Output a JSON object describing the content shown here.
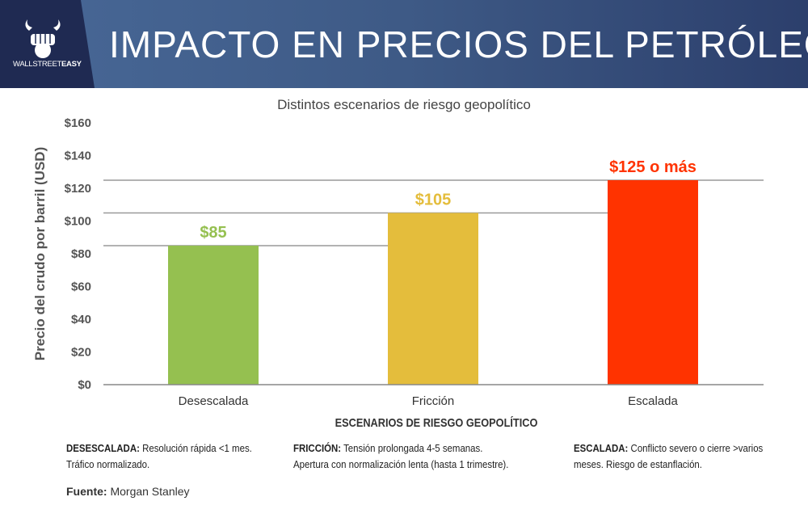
{
  "header": {
    "logo_text_light": "WALLSTREET",
    "logo_text_bold": "EASY",
    "title": "IMPACTO EN PRECIOS DEL PETRÓLEO"
  },
  "chart_data": {
    "type": "bar",
    "title": "Distintos escenarios de riesgo geopolítico",
    "categories": [
      "Desescalada",
      "Fricción",
      "Escalada"
    ],
    "values": [
      85,
      105,
      125
    ],
    "data_labels": [
      "$85",
      "$105",
      "$125 o más"
    ],
    "colors": [
      "#95c050",
      "#e4bd3c",
      "#ff3300"
    ],
    "xlabel": "ESCENARIOS DE RIESGO GEOPOLÍTICO",
    "ylabel": "Precio del crudo por barril (USD)",
    "ylim": [
      0,
      160
    ],
    "yticks": [
      "$0",
      "$20",
      "$40",
      "$60",
      "$80",
      "$100",
      "$120",
      "$140",
      "$160"
    ],
    "grid": false
  },
  "notes": [
    {
      "label": "DESESCALADA:",
      "line1": " Resolución rápida <1 mes.",
      "line2": "Tráfico normalizado."
    },
    {
      "label": "FRICCIÓN:",
      "line1": " Tensión prolongada 4-5 semanas.",
      "line2": "Apertura con normalización lenta (hasta 1 trimestre)."
    },
    {
      "label": "ESCALADA:",
      "line1": " Conflicto severo o cierre >varios",
      "line2": "meses. Riesgo de estanflación."
    }
  ],
  "source": {
    "label": "Fuente:",
    "value": " Morgan Stanley"
  }
}
